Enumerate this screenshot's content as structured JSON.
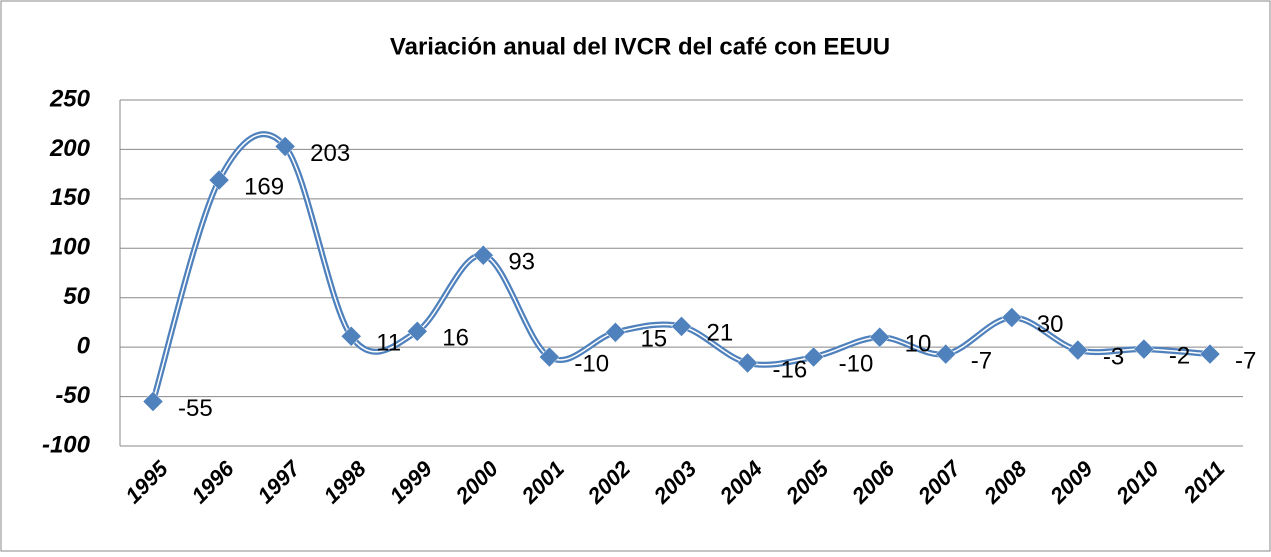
{
  "chart_data": {
    "type": "line",
    "title": "Variación anual del IVCR del café con EEUU",
    "categories": [
      "1995",
      "1996",
      "1997",
      "1998",
      "1999",
      "2000",
      "2001",
      "2002",
      "2003",
      "2004",
      "2005",
      "2006",
      "2007",
      "2008",
      "2009",
      "2010",
      "2011"
    ],
    "series": [
      {
        "color": "#4f81bd",
        "values": [
          -55,
          169,
          203,
          11,
          16,
          93,
          -10,
          15,
          21,
          -16,
          -10,
          10,
          -7,
          30,
          -3,
          -2,
          -7
        ]
      }
    ],
    "ylim": [
      -100,
      250
    ],
    "yticks": [
      -100,
      -50,
      0,
      50,
      100,
      150,
      200,
      250
    ],
    "grid": true,
    "smooth": true,
    "marker": "diamond",
    "data_labels": true
  }
}
